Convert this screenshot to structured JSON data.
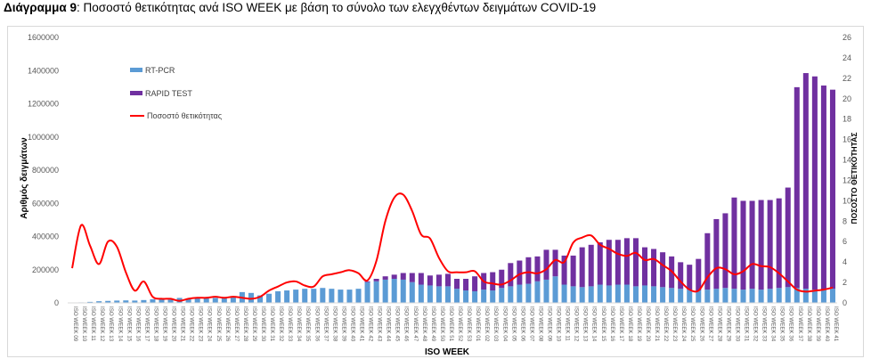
{
  "title": {
    "prefix": "Διάγραμμα 9",
    "text": ": Ποσοστό θετικότητας ανά ISO WEEK με βάση το σύνολο των ελεγχθέντων δειγμάτων COVID-19"
  },
  "chart_data": {
    "type": "bar",
    "stacked": true,
    "xlabel": "ISO WEEK",
    "ylabel": "Αριθμός δειγμάτων",
    "y2label": "ΠΟΣΟΣΤΟ ΘΕΤΙΚΟΤΗΤΑΣ",
    "ylim": [
      0,
      1600000
    ],
    "y2lim": [
      0,
      26
    ],
    "yticks": [
      0,
      200000,
      400000,
      600000,
      800000,
      1000000,
      1200000,
      1400000,
      1600000
    ],
    "y2ticks": [
      0,
      2,
      4,
      6,
      8,
      10,
      12,
      14,
      16,
      18,
      20,
      22,
      24,
      26
    ],
    "legend_position": "top-left",
    "grid": false,
    "colors": {
      "rtpcr": "#5b9bd5",
      "rapid": "#7030a0",
      "positivity": "#ff0000"
    },
    "categories": [
      "ISO WEEK 09",
      "ISO WEEK 10",
      "ISO WEEK 11",
      "ISO WEEK 12",
      "ISO WEEK 13",
      "ISO WEEK 14",
      "ISO WEEK 15",
      "ISO WEEK 16",
      "ISO WEEK 17",
      "ISO WEEK 18",
      "ISO WEEK 19",
      "ISO WEEK 20",
      "ISO WEEK 21",
      "ISO WEEK 22",
      "ISO WEEK 23",
      "ISO WEEK 24",
      "ISO WEEK 25",
      "ISO WEEK 26",
      "ISO WEEK 27",
      "ISO WEEK 28",
      "ISO WEEK 29",
      "ISO WEEK 30",
      "ISO WEEK 31",
      "ISO WEEK 32",
      "ISO WEEK 33",
      "ISO WEEK 34",
      "ISO WEEK 35",
      "ISO WEEK 36",
      "ISO WEEK 37",
      "ISO WEEK 38",
      "ISO WEEK 39",
      "ISO WEEK 40",
      "ISO WEEK 41",
      "ISO WEEK 42",
      "ISO WEEK 43",
      "ISO WEEK 44",
      "ISO WEEK 45",
      "ISO WEEK 46",
      "ISO WEEK 47",
      "ISO WEEK 48",
      "ISO WEEK 49",
      "ISO WEEK 50",
      "ISO WEEK 51",
      "ISO WEEK 52",
      "ISO WEEK 53",
      "ISO WEEK 01",
      "ISO WEEK 02",
      "ISO WEEK 03",
      "ISO WEEK 04",
      "ISO WEEK 05",
      "ISO WEEK 06",
      "ISO WEEK 07",
      "ISO WEEK 08",
      "ISO WEEK 09",
      "ISO WEEK 10",
      "ISO WEEK 11",
      "ISO WEEK 12",
      "ISO WEEK 13",
      "ISO WEEK 14",
      "ISO WEEK 15",
      "ISO WEEK 16",
      "ISO WEEK 17",
      "ISO WEEK 18",
      "ISO WEEK 19",
      "ISO WEEK 20",
      "ISO WEEK 21",
      "ISO WEEK 22",
      "ISO WEEK 23",
      "ISO WEEK 24",
      "ISO WEEK 25",
      "ISO WEEK 26",
      "ISO WEEK 27",
      "ISO WEEK 28",
      "ISO WEEK 29",
      "ISO WEEK 30",
      "ISO WEEK 31",
      "ISO WEEK 32",
      "ISO WEEK 33",
      "ISO WEEK 34",
      "ISO WEEK 35",
      "ISO WEEK 36",
      "ISO WEEK 37",
      "ISO WEEK 38",
      "ISO WEEK 39",
      "ISO WEEK 40",
      "ISO WEEK 41"
    ],
    "series": [
      {
        "name": "RT-PCR",
        "axis": "left",
        "values": [
          1000,
          3000,
          6000,
          10000,
          12000,
          14000,
          15000,
          14000,
          17000,
          22000,
          23000,
          20000,
          30000,
          25000,
          27000,
          33000,
          30000,
          34000,
          40000,
          65000,
          60000,
          45000,
          55000,
          70000,
          75000,
          80000,
          85000,
          85000,
          90000,
          85000,
          80000,
          80000,
          85000,
          125000,
          130000,
          140000,
          145000,
          140000,
          125000,
          110000,
          105000,
          100000,
          100000,
          85000,
          75000,
          70000,
          80000,
          75000,
          90000,
          100000,
          110000,
          115000,
          130000,
          140000,
          160000,
          110000,
          100000,
          95000,
          100000,
          110000,
          105000,
          110000,
          110000,
          100000,
          105000,
          100000,
          95000,
          90000,
          85000,
          80000,
          75000,
          80000,
          85000,
          90000,
          85000,
          80000,
          85000,
          80000,
          85000,
          90000,
          95000,
          90000,
          85000,
          80000,
          80000,
          85000
        ]
      },
      {
        "name": "RAPID TEST",
        "axis": "left",
        "values": [
          0,
          0,
          0,
          0,
          0,
          0,
          0,
          0,
          0,
          0,
          0,
          0,
          0,
          0,
          0,
          0,
          0,
          0,
          0,
          0,
          0,
          0,
          0,
          0,
          0,
          0,
          0,
          0,
          0,
          0,
          0,
          0,
          0,
          5000,
          15000,
          20000,
          25000,
          40000,
          55000,
          70000,
          60000,
          70000,
          75000,
          60000,
          70000,
          90000,
          100000,
          110000,
          110000,
          140000,
          145000,
          160000,
          150000,
          180000,
          160000,
          175000,
          185000,
          240000,
          250000,
          255000,
          275000,
          270000,
          280000,
          290000,
          230000,
          225000,
          210000,
          190000,
          160000,
          150000,
          190000,
          340000,
          420000,
          450000,
          550000,
          535000,
          530000,
          540000,
          535000,
          540000,
          600000,
          1210000,
          1300000,
          1285000,
          1230000,
          1200000
        ]
      },
      {
        "name": "Ποσοστό θετικότητας",
        "axis": "right",
        "type": "line",
        "values": [
          3.4,
          7.6,
          5.6,
          3.8,
          6.0,
          5.5,
          3.0,
          1.2,
          2.1,
          0.6,
          0.4,
          0.4,
          0.2,
          0.4,
          0.5,
          0.5,
          0.6,
          0.5,
          0.6,
          0.5,
          0.4,
          0.6,
          1.2,
          1.6,
          2.0,
          2.1,
          1.7,
          1.6,
          2.6,
          2.8,
          3.0,
          3.2,
          2.9,
          2.2,
          4.1,
          8.0,
          10.3,
          10.6,
          9.0,
          6.7,
          6.3,
          4.4,
          3.1,
          3.0,
          3.0,
          3.1,
          2.1,
          1.9,
          1.8,
          2.2,
          2.8,
          3.0,
          2.9,
          3.3,
          4.2,
          4.0,
          5.9,
          6.4,
          6.6,
          5.7,
          5.3,
          4.8,
          4.6,
          4.9,
          4.2,
          4.3,
          3.7,
          3.1,
          2.1,
          1.3,
          1.2,
          2.5,
          3.4,
          3.3,
          2.8,
          3.1,
          3.8,
          3.6,
          3.5,
          2.9,
          2.1,
          1.3,
          1.1,
          1.2,
          1.3,
          1.5
        ]
      }
    ]
  }
}
